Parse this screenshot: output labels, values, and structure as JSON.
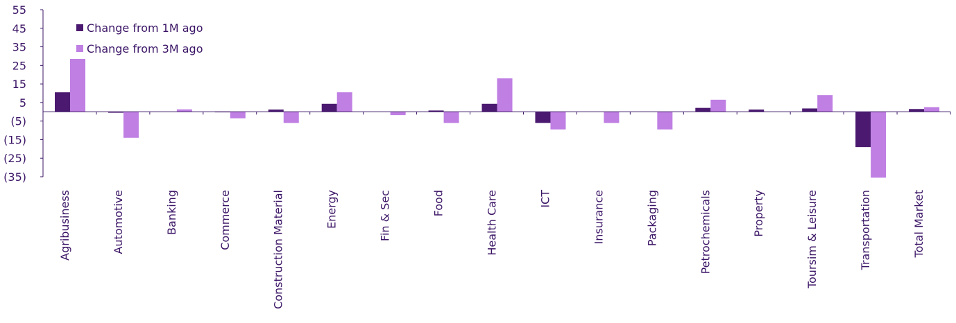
{
  "colors": {
    "series_1m": "#4b1a70",
    "series_3m": "#bf7fe3",
    "axis": "#3b1566",
    "text": "#3b1566"
  },
  "chart_data": {
    "type": "bar",
    "title": "",
    "xlabel": "",
    "ylabel": "",
    "ylim": [
      -35,
      55
    ],
    "yticks": [
      55,
      45,
      35,
      25,
      15,
      5,
      -5,
      -15,
      -25,
      -35
    ],
    "ytick_labels": [
      "55",
      "45",
      "35",
      "25",
      "15",
      "5",
      "(5)",
      "(15)",
      "(25)",
      "(35)"
    ],
    "grid": false,
    "legend_position": "top-left",
    "categories": [
      "Agribusiness",
      "Automotive",
      "Banking",
      "Commerce",
      "Construction Material",
      "Energy",
      "Fin & Sec",
      "Food",
      "Health Care",
      "ICT",
      "Insurance",
      "Packaging",
      "Petrochemicals",
      "Property",
      "Toursim & Leisure",
      "Transportation",
      "Total Market"
    ],
    "series": [
      {
        "name": "Change from 1M ago",
        "color": "#4b1a70",
        "values": [
          10.5,
          -0.5,
          0,
          -0.3,
          1.2,
          4.3,
          0.1,
          0.7,
          4.3,
          -6.0,
          0,
          0,
          2.1,
          1.2,
          1.8,
          -19.0,
          1.5
        ]
      },
      {
        "name": "Change from 3M ago",
        "color": "#bf7fe3",
        "values": [
          28.5,
          -14.0,
          1.3,
          -3.5,
          -6.0,
          10.5,
          -1.8,
          -6.0,
          18.0,
          -9.5,
          -6.0,
          -9.5,
          6.5,
          0,
          9.0,
          -35.5,
          2.5
        ]
      }
    ]
  }
}
